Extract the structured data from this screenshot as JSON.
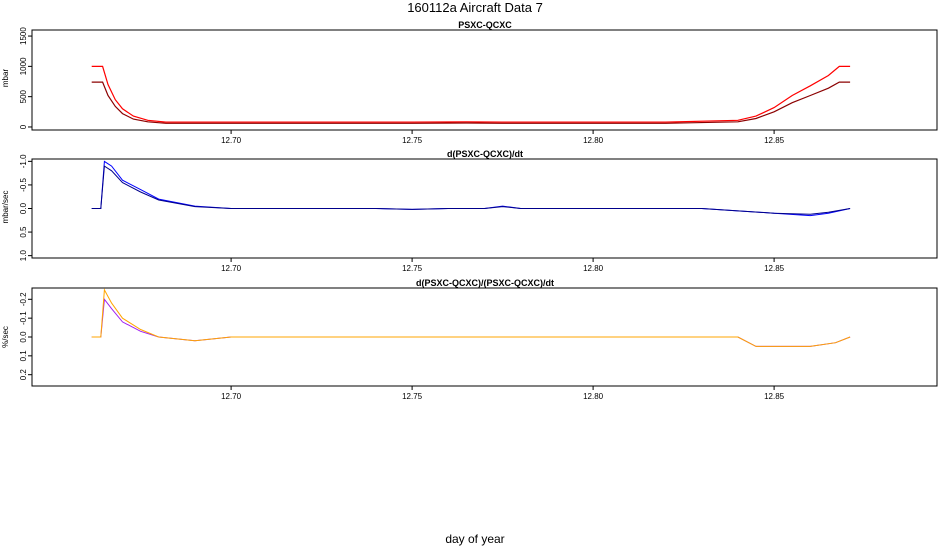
{
  "page": {
    "title": "160112a   Aircraft Data 7",
    "xlabel": "day of year"
  },
  "chart_data": [
    {
      "type": "line",
      "title": "PSXC-QCXC",
      "xlabel": "",
      "ylabel": "mbar",
      "xlim": [
        12.645,
        12.895
      ],
      "ylim": [
        -50,
        1600
      ],
      "x_ticks": [
        "12.70",
        "12.75",
        "12.80",
        "12.85"
      ],
      "y_ticks": [
        "0",
        "500",
        "1000",
        "1500"
      ],
      "y_reversed": false,
      "grid": false,
      "series": [
        {
          "color": "#ff0000",
          "x": [
            12.6615,
            12.6645,
            12.666,
            12.668,
            12.67,
            12.673,
            12.677,
            12.682,
            12.7,
            12.75,
            12.765,
            12.775,
            12.8,
            12.82,
            12.84,
            12.845,
            12.85,
            12.855,
            12.86,
            12.865,
            12.868,
            12.871
          ],
          "y": [
            1000,
            1000,
            700,
            450,
            300,
            180,
            110,
            80,
            80,
            80,
            85,
            80,
            80,
            80,
            110,
            180,
            320,
            520,
            680,
            850,
            1000,
            1000
          ]
        },
        {
          "color": "#8b0000",
          "x": [
            12.6615,
            12.6645,
            12.666,
            12.668,
            12.67,
            12.673,
            12.677,
            12.682,
            12.7,
            12.75,
            12.765,
            12.775,
            12.8,
            12.82,
            12.84,
            12.845,
            12.85,
            12.855,
            12.86,
            12.865,
            12.868,
            12.871
          ],
          "y": [
            740,
            740,
            520,
            340,
            220,
            130,
            85,
            60,
            60,
            60,
            65,
            60,
            60,
            60,
            85,
            140,
            250,
            400,
            520,
            640,
            740,
            740
          ]
        }
      ]
    },
    {
      "type": "line",
      "title": "d(PSXC-QCXC)/dt",
      "xlabel": "",
      "ylabel": "mbar/sec",
      "xlim": [
        12.645,
        12.895
      ],
      "ylim": [
        -1.05,
        1.05
      ],
      "x_ticks": [
        "12.70",
        "12.75",
        "12.80",
        "12.85"
      ],
      "y_ticks": [
        "-1.0",
        "-0.5",
        "0.0",
        "0.5",
        "1.0"
      ],
      "y_reversed": true,
      "grid": false,
      "series": [
        {
          "color": "#0000ff",
          "x": [
            12.6615,
            12.664,
            12.665,
            12.667,
            12.67,
            12.675,
            12.68,
            12.69,
            12.7,
            12.72,
            12.74,
            12.75,
            12.76,
            12.77,
            12.775,
            12.78,
            12.79,
            12.8,
            12.81,
            12.82,
            12.83,
            12.84,
            12.85,
            12.86,
            12.865,
            12.871
          ],
          "y": [
            0.0,
            0.0,
            -1.0,
            -0.9,
            -0.6,
            -0.4,
            -0.2,
            -0.05,
            0.0,
            0.0,
            0.0,
            0.02,
            0.0,
            0.0,
            -0.05,
            0.0,
            0.0,
            0.0,
            0.0,
            0.0,
            0.0,
            0.05,
            0.1,
            0.15,
            0.1,
            0.0
          ]
        },
        {
          "color": "#00008b",
          "x": [
            12.6615,
            12.664,
            12.665,
            12.667,
            12.67,
            12.675,
            12.68,
            12.69,
            12.7,
            12.72,
            12.74,
            12.75,
            12.76,
            12.77,
            12.775,
            12.78,
            12.79,
            12.8,
            12.81,
            12.82,
            12.83,
            12.84,
            12.85,
            12.86,
            12.865,
            12.871
          ],
          "y": [
            0.0,
            0.0,
            -0.9,
            -0.8,
            -0.55,
            -0.35,
            -0.18,
            -0.04,
            0.0,
            0.0,
            0.0,
            0.02,
            0.0,
            0.0,
            -0.04,
            0.0,
            0.0,
            0.0,
            0.0,
            0.0,
            0.0,
            0.05,
            0.1,
            0.12,
            0.08,
            0.0
          ]
        }
      ]
    },
    {
      "type": "line",
      "title": "d(PSXC-QCXC)/(PSXC-QCXC)/dt",
      "xlabel": "",
      "ylabel": "%/sec",
      "xlim": [
        12.645,
        12.895
      ],
      "ylim": [
        -0.26,
        0.26
      ],
      "x_ticks": [
        "12.70",
        "12.75",
        "12.80",
        "12.85"
      ],
      "y_ticks": [
        "-0.2",
        "-0.1",
        "0.0",
        "0.1",
        "0.2"
      ],
      "y_reversed": true,
      "grid": false,
      "series": [
        {
          "color": "#a020f0",
          "x": [
            12.6615,
            12.664,
            12.665,
            12.667,
            12.67,
            12.675,
            12.68,
            12.69,
            12.7,
            12.72,
            12.74,
            12.75,
            12.76,
            12.77,
            12.78,
            12.79,
            12.8,
            12.81,
            12.82,
            12.83,
            12.84,
            12.845,
            12.85,
            12.86,
            12.867,
            12.871
          ],
          "y": [
            0.0,
            0.0,
            -0.2,
            -0.15,
            -0.08,
            -0.03,
            0.0,
            0.02,
            0.0,
            0.0,
            0.0,
            0.0,
            0.0,
            0.0,
            0.0,
            0.0,
            0.0,
            0.0,
            0.0,
            0.0,
            0.0,
            0.05,
            0.05,
            0.05,
            0.03,
            0.0
          ]
        },
        {
          "color": "#ffa500",
          "x": [
            12.6615,
            12.664,
            12.665,
            12.667,
            12.67,
            12.675,
            12.68,
            12.69,
            12.7,
            12.72,
            12.74,
            12.75,
            12.76,
            12.77,
            12.78,
            12.79,
            12.8,
            12.81,
            12.82,
            12.83,
            12.84,
            12.845,
            12.85,
            12.86,
            12.867,
            12.871
          ],
          "y": [
            0.0,
            0.0,
            -0.25,
            -0.18,
            -0.1,
            -0.04,
            0.0,
            0.02,
            0.0,
            0.0,
            0.0,
            0.0,
            0.0,
            0.0,
            0.0,
            0.0,
            0.0,
            0.0,
            0.0,
            0.0,
            0.0,
            0.05,
            0.05,
            0.05,
            0.03,
            0.0
          ]
        }
      ]
    }
  ]
}
